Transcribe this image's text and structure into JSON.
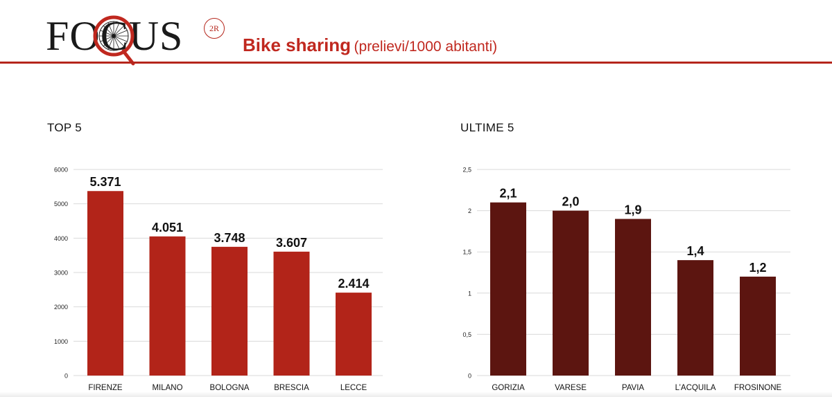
{
  "header": {
    "logo_text": "FOCUS",
    "logo_badge": "2R",
    "title_main": "Bike sharing",
    "title_sub": "(prelievi/1000 abitanti)"
  },
  "colors": {
    "accent": "#b5261c",
    "top_bar": "#b22419",
    "bottom_bar": "#5c1510",
    "grid": "#d9d9d9",
    "text": "#111111"
  },
  "chart_data": [
    {
      "type": "bar",
      "title": "TOP 5",
      "categories": [
        "FIRENZE",
        "MILANO",
        "BOLOGNA",
        "BRESCIA",
        "LECCE"
      ],
      "values": [
        5371,
        4051,
        3748,
        3607,
        2414
      ],
      "data_labels": [
        "5.371",
        "4.051",
        "3.748",
        "3.607",
        "2.414"
      ],
      "yticks": [
        "0",
        "1000",
        "2000",
        "3000",
        "4000",
        "5000",
        "6000"
      ],
      "ylim": [
        0,
        6000
      ],
      "grid": true,
      "legend": "none"
    },
    {
      "type": "bar",
      "title": "ULTIME 5",
      "categories": [
        "GORIZIA",
        "VARESE",
        "PAVIA",
        "L’ACQUILA",
        "FROSINONE"
      ],
      "values": [
        2.1,
        2.0,
        1.9,
        1.4,
        1.2
      ],
      "data_labels": [
        "2,1",
        "2,0",
        "1,9",
        "1,4",
        "1,2"
      ],
      "yticks": [
        "0",
        "0,5",
        "1",
        "1,5",
        "2",
        "2,5"
      ],
      "ylim": [
        0,
        2.5
      ],
      "grid": true,
      "legend": "none"
    }
  ]
}
